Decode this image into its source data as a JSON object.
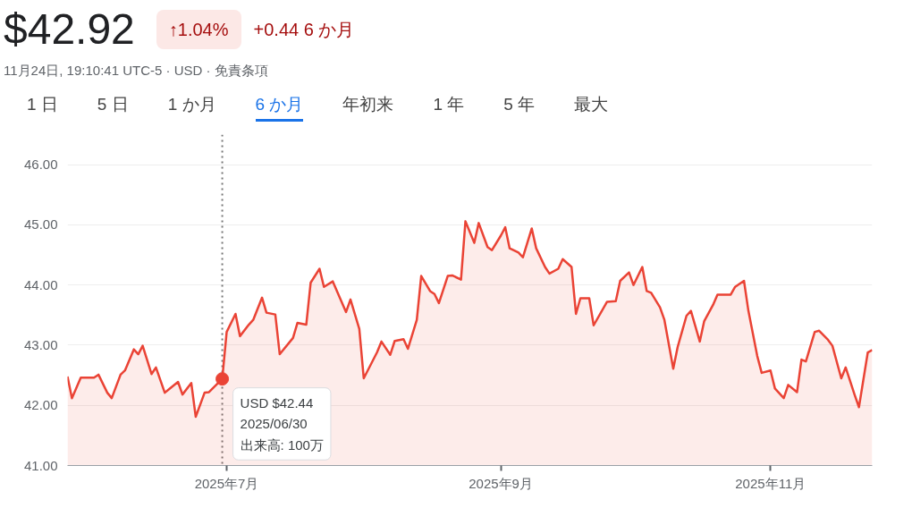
{
  "chart_data": {
    "type": "area",
    "title": "$42.92",
    "annotations": [
      "↑1.04%",
      "+0.44 6 か月",
      "11月24日, 19:10:41 UTC-5 · USD · 免責条項",
      "1 日",
      "5 日",
      "1 か月",
      "6 か月",
      "年初来",
      "1 年",
      "5 年",
      "最大",
      {
        "text": "USD $42.44\n2025/06/30\n出来高: 100万",
        "x": "2025-06-30",
        "y": 42.44
      }
    ],
    "x": [
      "2025-05-26",
      "2025-05-27",
      "2025-05-29",
      "2025-06-01",
      "2025-06-02",
      "2025-06-04",
      "2025-06-05",
      "2025-06-07",
      "2025-06-08",
      "2025-06-10",
      "2025-06-11",
      "2025-06-12",
      "2025-06-14",
      "2025-06-15",
      "2025-06-17",
      "2025-06-18",
      "2025-06-20",
      "2025-06-21",
      "2025-06-23",
      "2025-06-24",
      "2025-06-26",
      "2025-06-27",
      "2025-06-30",
      "2025-07-01",
      "2025-07-03",
      "2025-07-04",
      "2025-07-06",
      "2025-07-07",
      "2025-07-09",
      "2025-07-10",
      "2025-07-12",
      "2025-07-13",
      "2025-07-16",
      "2025-07-17",
      "2025-07-19",
      "2025-07-20",
      "2025-07-22",
      "2025-07-23",
      "2025-07-25",
      "2025-07-28",
      "2025-07-29",
      "2025-07-31",
      "2025-08-01",
      "2025-08-04",
      "2025-08-05",
      "2025-08-07",
      "2025-08-08",
      "2025-08-10",
      "2025-08-11",
      "2025-08-13",
      "2025-08-14",
      "2025-08-16",
      "2025-08-17",
      "2025-08-18",
      "2025-08-20",
      "2025-08-21",
      "2025-08-23",
      "2025-08-24",
      "2025-08-26",
      "2025-08-27",
      "2025-08-29",
      "2025-08-30",
      "2025-09-01",
      "2025-09-02",
      "2025-09-03",
      "2025-09-05",
      "2025-09-06",
      "2025-09-08",
      "2025-09-09",
      "2025-09-11",
      "2025-09-12",
      "2025-09-14",
      "2025-09-15",
      "2025-09-17",
      "2025-09-18",
      "2025-09-19",
      "2025-09-21",
      "2025-09-22",
      "2025-09-25",
      "2025-09-27",
      "2025-09-28",
      "2025-09-30",
      "2025-10-01",
      "2025-10-03",
      "2025-10-04",
      "2025-10-05",
      "2025-10-07",
      "2025-10-08",
      "2025-10-10",
      "2025-10-11",
      "2025-10-13",
      "2025-10-14",
      "2025-10-16",
      "2025-10-17",
      "2025-10-19",
      "2025-10-20",
      "2025-10-23",
      "2025-10-24",
      "2025-10-26",
      "2025-10-27",
      "2025-10-29",
      "2025-10-30",
      "2025-11-01",
      "2025-11-02",
      "2025-11-04",
      "2025-11-05",
      "2025-11-07",
      "2025-11-08",
      "2025-11-09",
      "2025-11-11",
      "2025-11-12",
      "2025-11-14",
      "2025-11-15",
      "2025-11-17",
      "2025-11-18",
      "2025-11-20",
      "2025-11-21",
      "2025-11-23",
      "2025-11-24"
    ],
    "series": [
      {
        "color": "#ea4335",
        "values": [
          42.48,
          42.12,
          42.46,
          42.46,
          42.51,
          42.21,
          42.12,
          42.51,
          42.58,
          42.93,
          42.85,
          42.99,
          42.52,
          42.63,
          42.21,
          42.27,
          42.39,
          42.18,
          42.37,
          41.81,
          42.21,
          42.22,
          42.44,
          43.22,
          43.52,
          43.15,
          43.34,
          43.42,
          43.79,
          43.54,
          43.51,
          42.85,
          43.12,
          43.37,
          43.34,
          44.04,
          44.27,
          43.97,
          44.06,
          43.55,
          43.76,
          43.27,
          42.45,
          42.88,
          43.06,
          42.84,
          43.07,
          43.1,
          42.94,
          43.42,
          44.15,
          43.9,
          43.85,
          43.7,
          44.15,
          44.16,
          44.09,
          45.06,
          44.7,
          45.03,
          44.63,
          44.58,
          44.82,
          44.96,
          44.61,
          44.54,
          44.46,
          44.94,
          44.61,
          44.3,
          44.19,
          44.27,
          44.43,
          44.3,
          43.52,
          43.78,
          43.78,
          43.33,
          43.72,
          43.73,
          44.07,
          44.21,
          44.0,
          44.3,
          43.9,
          43.87,
          43.63,
          43.42,
          42.61,
          42.97,
          43.49,
          43.57,
          43.06,
          43.4,
          43.67,
          43.84,
          43.84,
          43.97,
          44.07,
          43.57,
          42.82,
          42.54,
          42.58,
          42.28,
          42.12,
          42.34,
          42.22,
          42.76,
          42.73,
          43.22,
          43.24,
          43.09,
          42.99,
          42.45,
          42.63,
          42.18,
          41.97,
          42.88,
          42.92
        ]
      }
    ],
    "xlim": [
      "2025-05-26",
      "2025-11-24"
    ],
    "xticks": [
      {
        "value": "2025-07-01",
        "label": "2025年7月"
      },
      {
        "value": "2025-09-01",
        "label": "2025年9月"
      },
      {
        "value": "2025-11-01",
        "label": "2025年11月"
      }
    ],
    "ylim": [
      41,
      46.5
    ],
    "yticks": [
      {
        "value": 41,
        "label": "41.00"
      },
      {
        "value": 42,
        "label": "42.00"
      },
      {
        "value": 43,
        "label": "43.00"
      },
      {
        "value": 44,
        "label": "44.00"
      },
      {
        "value": 45,
        "label": "45.00"
      },
      {
        "value": 46,
        "label": "46.00"
      }
    ],
    "grid": "y",
    "marker": "none",
    "line_style": "solid",
    "ref_lines": [
      {
        "axis": "x",
        "value": "2025-06-30",
        "label": null,
        "color": "#757575",
        "line_style": "dotted"
      }
    ]
  }
}
